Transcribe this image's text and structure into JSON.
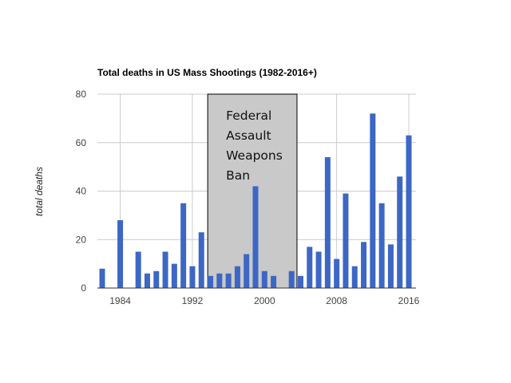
{
  "chart_data": {
    "type": "bar",
    "title": "Total deaths in US Mass Shootings (1982-2016+)",
    "ylabel": "total deaths",
    "xlabel": "",
    "ylim": [
      0,
      80
    ],
    "yticks": [
      0,
      20,
      40,
      60,
      80
    ],
    "xlim": [
      1982,
      2016
    ],
    "xticks": [
      "1984",
      "1992",
      "2000",
      "2008",
      "2016"
    ],
    "x": [
      1982,
      1984,
      1986,
      1987,
      1988,
      1989,
      1990,
      1991,
      1992,
      1993,
      1994,
      1995,
      1996,
      1997,
      1998,
      1999,
      2000,
      2001,
      2003,
      2004,
      2005,
      2006,
      2007,
      2008,
      2009,
      2010,
      2011,
      2012,
      2013,
      2014,
      2015,
      2016
    ],
    "values": [
      8,
      28,
      15,
      6,
      7,
      15,
      10,
      35,
      9,
      23,
      5,
      6,
      6,
      9,
      14,
      42,
      7,
      5,
      7,
      5,
      17,
      15,
      54,
      12,
      39,
      9,
      19,
      72,
      35,
      18,
      46,
      63
    ],
    "bar_color": "#3d67c5",
    "grid": true,
    "annotation": {
      "lines": [
        "Federal",
        "Assault",
        "Weapons",
        "Ban"
      ],
      "x_range": [
        1993.7,
        2003.6
      ],
      "fill": "#c9c9c9"
    }
  }
}
